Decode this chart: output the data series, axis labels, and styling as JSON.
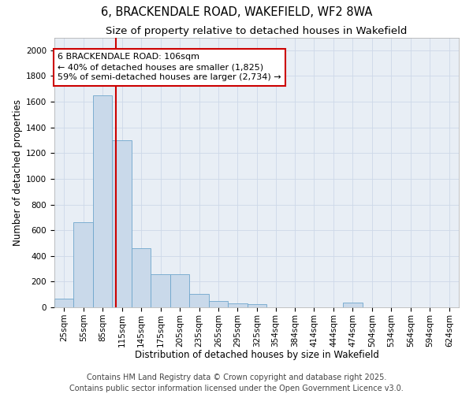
{
  "title_line1": "6, BRACKENDALE ROAD, WAKEFIELD, WF2 8WA",
  "title_line2": "Size of property relative to detached houses in Wakefield",
  "xlabel": "Distribution of detached houses by size in Wakefield",
  "ylabel": "Number of detached properties",
  "bar_color": "#c9d9ea",
  "bar_edge_color": "#6ea6cc",
  "vline_color": "#cc0000",
  "vline_x": 106,
  "annotation_text": "6 BRACKENDALE ROAD: 106sqm\n← 40% of detached houses are smaller (1,825)\n59% of semi-detached houses are larger (2,734) →",
  "annotation_box_color": "#ffffff",
  "annotation_edge_color": "#cc0000",
  "categories": [
    "25sqm",
    "55sqm",
    "85sqm",
    "115sqm",
    "145sqm",
    "175sqm",
    "205sqm",
    "235sqm",
    "265sqm",
    "295sqm",
    "325sqm",
    "354sqm",
    "384sqm",
    "414sqm",
    "444sqm",
    "474sqm",
    "504sqm",
    "534sqm",
    "564sqm",
    "594sqm",
    "624sqm"
  ],
  "bin_starts": [
    10,
    40,
    70,
    100,
    130,
    160,
    190,
    220,
    250,
    280,
    310,
    339,
    369,
    399,
    429,
    459,
    489,
    519,
    549,
    579,
    609
  ],
  "bin_width": 30,
  "values": [
    70,
    660,
    1650,
    1300,
    460,
    255,
    255,
    105,
    50,
    30,
    25,
    0,
    0,
    0,
    0,
    35,
    0,
    0,
    0,
    0,
    0
  ],
  "xlim": [
    10,
    639
  ],
  "ylim": [
    0,
    2100
  ],
  "yticks": [
    0,
    200,
    400,
    600,
    800,
    1000,
    1200,
    1400,
    1600,
    1800,
    2000
  ],
  "grid_color": "#cdd8e8",
  "background_color": "#e8eef5",
  "footer_text": "Contains HM Land Registry data © Crown copyright and database right 2025.\nContains public sector information licensed under the Open Government Licence v3.0.",
  "title_fontsize": 10.5,
  "subtitle_fontsize": 9.5,
  "axis_label_fontsize": 8.5,
  "tick_fontsize": 7.5,
  "annotation_fontsize": 8,
  "footer_fontsize": 7
}
